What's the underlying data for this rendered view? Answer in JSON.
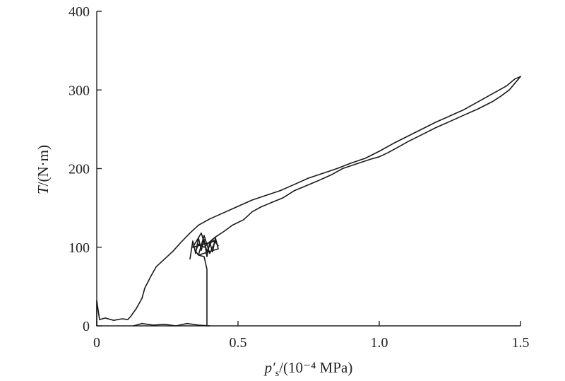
{
  "chart_data": {
    "type": "line",
    "title": "",
    "xlabel": {
      "symbol": "p′",
      "subscript": "s",
      "unit": "/(10⁻⁴ MPa)"
    },
    "ylabel": {
      "symbol": "T",
      "unit": "/(N·m)"
    },
    "xlim": [
      0,
      1.5
    ],
    "ylim": [
      0,
      400
    ],
    "x_ticks": [
      "0",
      "0.5",
      "1.0",
      "1.5"
    ],
    "y_ticks": [
      "0",
      "100",
      "200",
      "300",
      "400"
    ],
    "grid": false,
    "series": [
      {
        "values": [
          [
            0.0,
            0
          ],
          [
            0.0,
            32
          ],
          [
            0.01,
            8
          ],
          [
            0.03,
            10
          ],
          [
            0.06,
            7
          ],
          [
            0.09,
            9
          ],
          [
            0.11,
            8
          ],
          [
            0.12,
            12
          ],
          [
            0.14,
            22
          ],
          [
            0.16,
            35
          ],
          [
            0.17,
            48
          ],
          [
            0.19,
            62
          ],
          [
            0.21,
            75
          ],
          [
            0.24,
            85
          ],
          [
            0.27,
            95
          ],
          [
            0.3,
            107
          ],
          [
            0.33,
            118
          ],
          [
            0.36,
            128
          ],
          [
            0.4,
            136
          ],
          [
            0.45,
            144
          ],
          [
            0.5,
            152
          ],
          [
            0.55,
            160
          ],
          [
            0.6,
            166
          ],
          [
            0.65,
            172
          ],
          [
            0.7,
            180
          ],
          [
            0.75,
            188
          ],
          [
            0.8,
            194
          ],
          [
            0.85,
            200
          ],
          [
            0.9,
            207
          ],
          [
            0.95,
            213
          ],
          [
            1.0,
            222
          ],
          [
            1.05,
            232
          ],
          [
            1.1,
            241
          ],
          [
            1.15,
            250
          ],
          [
            1.2,
            259
          ],
          [
            1.25,
            267
          ],
          [
            1.3,
            275
          ],
          [
            1.35,
            285
          ],
          [
            1.4,
            295
          ],
          [
            1.45,
            305
          ],
          [
            1.48,
            314
          ],
          [
            1.5,
            317
          ]
        ]
      },
      {
        "values": [
          [
            0.39,
            0
          ],
          [
            0.39,
            72
          ],
          [
            0.38,
            88
          ],
          [
            0.36,
            90
          ],
          [
            0.35,
            95
          ],
          [
            0.36,
            104
          ],
          [
            0.38,
            100
          ],
          [
            0.4,
            107
          ],
          [
            0.42,
            113
          ],
          [
            0.45,
            120
          ],
          [
            0.48,
            128
          ],
          [
            0.52,
            135
          ],
          [
            0.55,
            145
          ],
          [
            0.58,
            151
          ],
          [
            0.62,
            157
          ],
          [
            0.66,
            163
          ],
          [
            0.7,
            172
          ],
          [
            0.74,
            178
          ],
          [
            0.78,
            184
          ],
          [
            0.83,
            192
          ],
          [
            0.87,
            200
          ],
          [
            0.92,
            206
          ],
          [
            0.97,
            212
          ],
          [
            1.0,
            215
          ],
          [
            1.03,
            220
          ],
          [
            1.07,
            228
          ],
          [
            1.1,
            234
          ],
          [
            1.15,
            243
          ],
          [
            1.2,
            252
          ],
          [
            1.25,
            260
          ],
          [
            1.3,
            268
          ],
          [
            1.35,
            276
          ],
          [
            1.4,
            285
          ],
          [
            1.43,
            292
          ],
          [
            1.46,
            300
          ],
          [
            1.5,
            317
          ]
        ]
      },
      {
        "values": [
          [
            0.33,
            85
          ],
          [
            0.34,
            108
          ],
          [
            0.35,
            92
          ],
          [
            0.36,
            112
          ],
          [
            0.37,
            96
          ],
          [
            0.38,
            110
          ],
          [
            0.39,
            88
          ],
          [
            0.4,
            106
          ],
          [
            0.41,
            94
          ],
          [
            0.42,
            112
          ],
          [
            0.43,
            98
          ],
          [
            0.36,
            90
          ],
          [
            0.38,
            115
          ],
          [
            0.4,
            92
          ],
          [
            0.42,
            108
          ],
          [
            0.34,
            100
          ],
          [
            0.37,
            118
          ],
          [
            0.39,
            95
          ],
          [
            0.41,
            110
          ],
          [
            0.43,
            102
          ]
        ]
      },
      {
        "values": [
          [
            0.13,
            0
          ],
          [
            0.16,
            3
          ],
          [
            0.2,
            1
          ],
          [
            0.24,
            2
          ],
          [
            0.28,
            0
          ],
          [
            0.32,
            3
          ],
          [
            0.36,
            1
          ],
          [
            0.4,
            0
          ]
        ]
      }
    ]
  }
}
